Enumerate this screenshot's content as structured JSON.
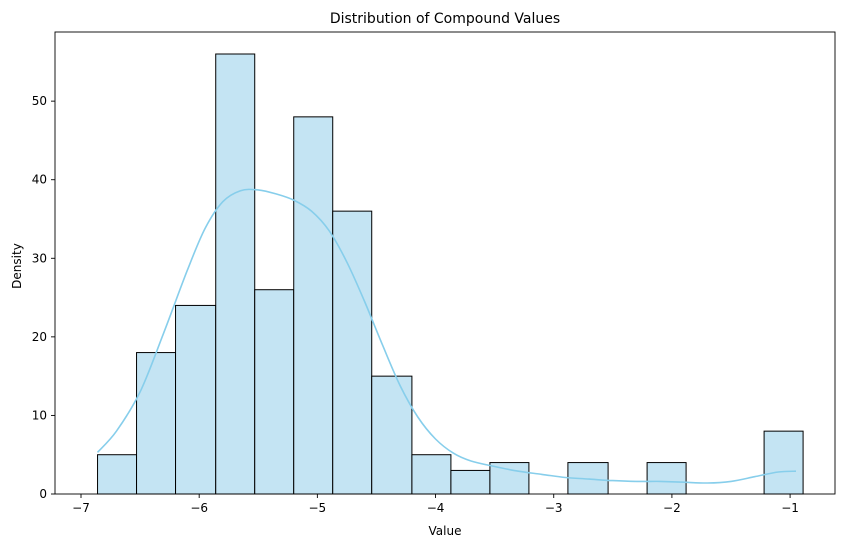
{
  "chart_data": {
    "type": "bar",
    "title": "Distribution of Compound Values",
    "xlabel": "Value",
    "ylabel": "Density",
    "xlim": [
      -7.22,
      -0.62
    ],
    "ylim": [
      0,
      58.8
    ],
    "xticks": [
      -7,
      -6,
      -5,
      -4,
      -3,
      -2,
      -1
    ],
    "yticks": [
      0,
      10,
      20,
      30,
      40,
      50
    ],
    "grid": false,
    "bins": [
      {
        "x0": -6.86,
        "x1": -6.53,
        "count": 5
      },
      {
        "x0": -6.53,
        "x1": -6.2,
        "count": 18
      },
      {
        "x0": -6.2,
        "x1": -5.86,
        "count": 24
      },
      {
        "x0": -5.86,
        "x1": -5.53,
        "count": 56
      },
      {
        "x0": -5.53,
        "x1": -5.2,
        "count": 26
      },
      {
        "x0": -5.2,
        "x1": -4.87,
        "count": 48
      },
      {
        "x0": -4.87,
        "x1": -4.54,
        "count": 36
      },
      {
        "x0": -4.54,
        "x1": -4.2,
        "count": 15
      },
      {
        "x0": -4.2,
        "x1": -3.87,
        "count": 5
      },
      {
        "x0": -3.87,
        "x1": -3.54,
        "count": 3
      },
      {
        "x0": -3.54,
        "x1": -3.21,
        "count": 4
      },
      {
        "x0": -3.21,
        "x1": -2.88,
        "count": 0
      },
      {
        "x0": -2.88,
        "x1": -2.54,
        "count": 4
      },
      {
        "x0": -2.54,
        "x1": -2.21,
        "count": 0
      },
      {
        "x0": -2.21,
        "x1": -1.88,
        "count": 4
      },
      {
        "x0": -1.88,
        "x1": -1.55,
        "count": 0
      },
      {
        "x0": -1.55,
        "x1": -1.22,
        "count": 0
      },
      {
        "x0": -1.22,
        "x1": -0.89,
        "count": 8
      }
    ],
    "kde_curve": {
      "x": [
        -6.86,
        -6.7,
        -6.5,
        -6.3,
        -6.1,
        -5.95,
        -5.8,
        -5.65,
        -5.5,
        -5.35,
        -5.2,
        -5.05,
        -4.9,
        -4.75,
        -4.6,
        -4.45,
        -4.3,
        -4.15,
        -4.0,
        -3.85,
        -3.7,
        -3.5,
        -3.3,
        -3.1,
        -2.9,
        -2.7,
        -2.5,
        -2.3,
        -2.1,
        -1.9,
        -1.7,
        -1.5,
        -1.3,
        -1.1,
        -0.95
      ],
      "y": [
        5.3,
        8.0,
        13.0,
        20.5,
        28.5,
        33.8,
        37.2,
        38.6,
        38.7,
        38.2,
        37.4,
        36.0,
        33.5,
        29.5,
        24.5,
        19.0,
        13.8,
        9.8,
        7.0,
        5.2,
        4.2,
        3.5,
        2.9,
        2.5,
        2.1,
        1.9,
        1.7,
        1.6,
        1.6,
        1.5,
        1.4,
        1.6,
        2.2,
        2.8,
        2.9
      ]
    },
    "colors": {
      "bar_fill": "#c4e4f3",
      "bar_edge": "#000000",
      "kde_line": "#87ceeb"
    }
  }
}
